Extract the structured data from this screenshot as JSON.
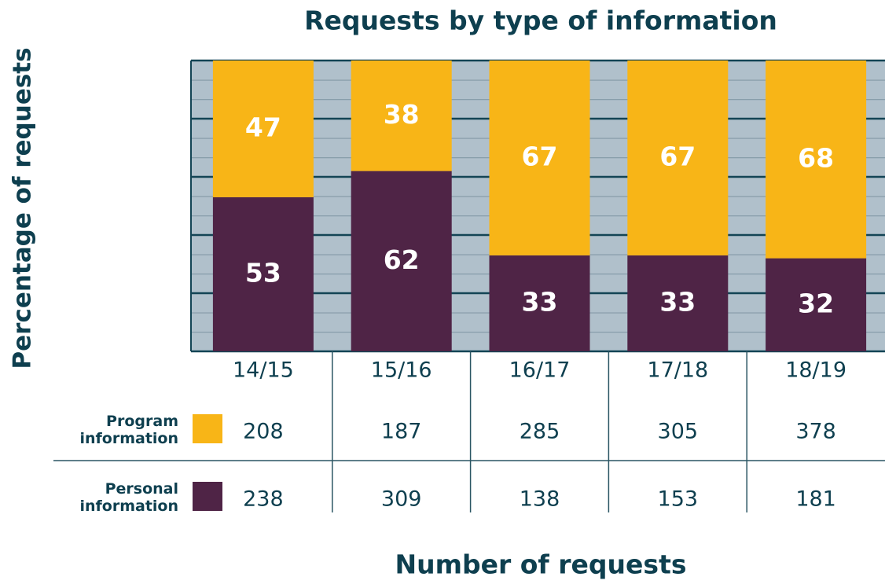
{
  "chart_data": {
    "type": "stacked_bar",
    "title": "Requests by type of information",
    "ylabel": "Percentage of requests",
    "xlabel": "Number of requests",
    "categories": [
      "14/15",
      "15/16",
      "16/17",
      "17/18",
      "18/19"
    ],
    "series": [
      {
        "name": "Program information",
        "color": "#f8b517",
        "values": [
          47,
          38,
          67,
          67,
          68
        ],
        "counts": [
          208,
          187,
          285,
          305,
          378
        ]
      },
      {
        "name": "Personal information",
        "color": "#4f2446",
        "values": [
          53,
          62,
          33,
          33,
          32
        ],
        "counts": [
          238,
          309,
          138,
          153,
          181
        ]
      }
    ],
    "ylim": [
      0,
      100
    ],
    "yticks": [
      0,
      20,
      40,
      60,
      80,
      100
    ],
    "grid": true
  }
}
